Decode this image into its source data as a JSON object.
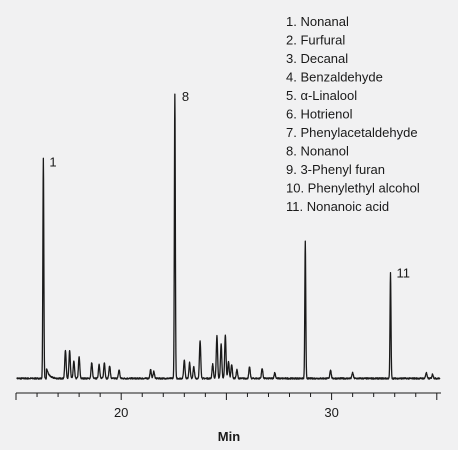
{
  "chart_data": {
    "type": "line",
    "title": "",
    "xlabel": "Min",
    "ylabel": "",
    "xlim": [
      15,
      35.2
    ],
    "ylim": [
      0,
      100
    ],
    "x_ticks": [
      20,
      30
    ],
    "x_tick_labels": [
      "20",
      "30"
    ],
    "grid": false,
    "legend_placement": "top-right",
    "legend": [
      "1. Nonanal",
      "2. Furfural",
      "3. Decanal",
      "4. Benzaldehyde",
      "5. α-Linalool",
      "6. Hotrienol",
      "7. Phenylacetaldehyde",
      "8. Nonanol",
      "9. 3-Phenyl furan",
      "10. Phenylethyl alcohol",
      "11. Nonanoic acid"
    ],
    "peak_labels": [
      {
        "text": "1",
        "x": 16.3,
        "y": 77
      },
      {
        "text": "8",
        "x": 22.6,
        "y": 100
      },
      {
        "text": "11",
        "x": 32.8,
        "y": 38
      }
    ],
    "series": [
      {
        "color": "#1a1a1a",
        "peaks": [
          {
            "x": 16.3,
            "y": 77
          },
          {
            "x": 17.35,
            "y": 10
          },
          {
            "x": 17.55,
            "y": 10
          },
          {
            "x": 17.75,
            "y": 6
          },
          {
            "x": 18.0,
            "y": 7.5
          },
          {
            "x": 18.6,
            "y": 5.5
          },
          {
            "x": 18.95,
            "y": 5
          },
          {
            "x": 19.2,
            "y": 5.5
          },
          {
            "x": 19.45,
            "y": 4.5
          },
          {
            "x": 19.9,
            "y": 3
          },
          {
            "x": 21.4,
            "y": 3
          },
          {
            "x": 21.55,
            "y": 2.5
          },
          {
            "x": 22.55,
            "y": 100
          },
          {
            "x": 23.0,
            "y": 6.5
          },
          {
            "x": 23.25,
            "y": 5.5
          },
          {
            "x": 23.45,
            "y": 4
          },
          {
            "x": 23.75,
            "y": 13
          },
          {
            "x": 24.35,
            "y": 5
          },
          {
            "x": 24.55,
            "y": 15
          },
          {
            "x": 24.75,
            "y": 12
          },
          {
            "x": 24.95,
            "y": 15
          },
          {
            "x": 25.1,
            "y": 6
          },
          {
            "x": 25.25,
            "y": 5
          },
          {
            "x": 25.5,
            "y": 3
          },
          {
            "x": 26.1,
            "y": 4
          },
          {
            "x": 26.7,
            "y": 3.5
          },
          {
            "x": 27.3,
            "y": 2
          },
          {
            "x": 28.75,
            "y": 48
          },
          {
            "x": 29.95,
            "y": 3
          },
          {
            "x": 31.0,
            "y": 2
          },
          {
            "x": 32.8,
            "y": 37
          },
          {
            "x": 34.5,
            "y": 2
          },
          {
            "x": 34.8,
            "y": 1.5
          }
        ]
      }
    ]
  }
}
